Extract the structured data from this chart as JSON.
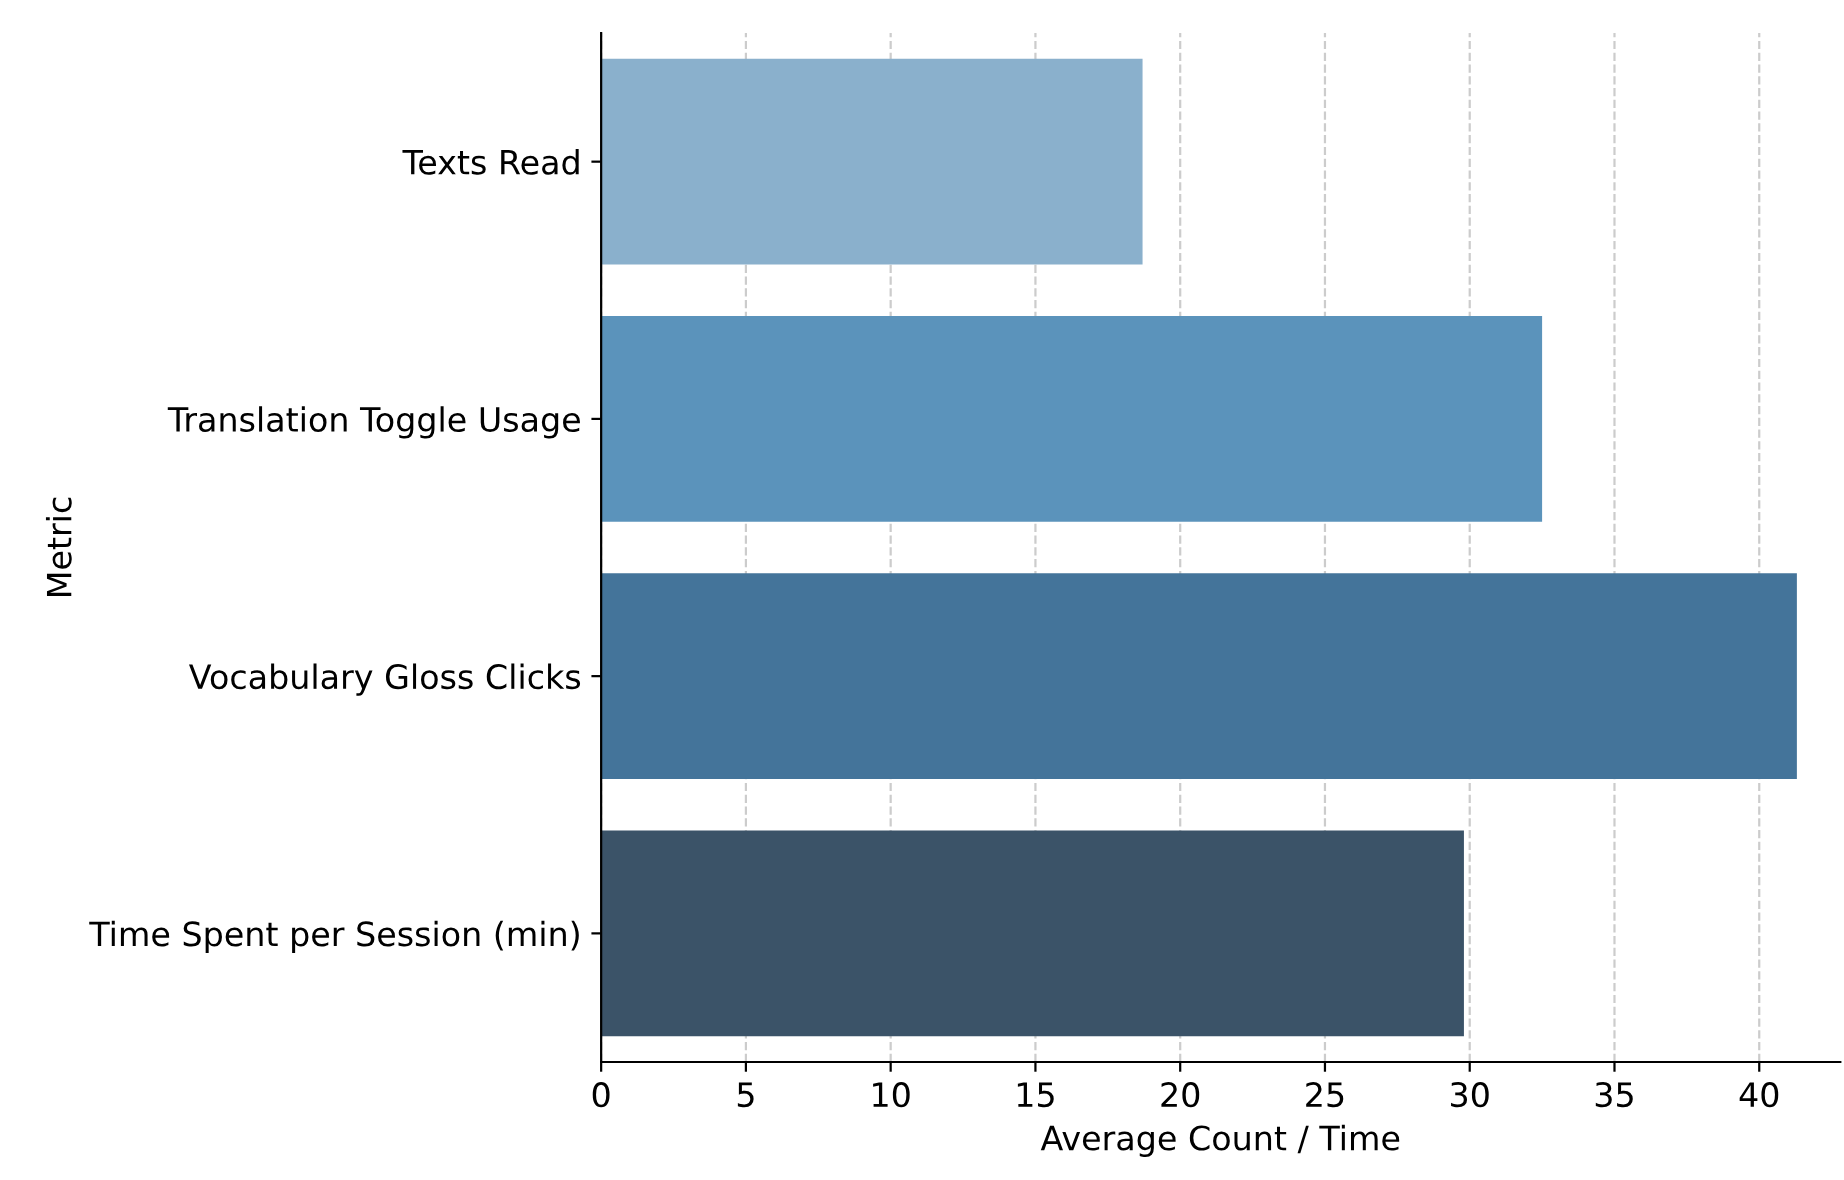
{
  "chart_data": {
    "type": "bar",
    "orientation": "horizontal",
    "xlabel": "Average Count / Time",
    "ylabel": "Metric",
    "categories": [
      "Texts Read",
      "Translation Toggle Usage",
      "Vocabulary Gloss Clicks",
      "Time Spent per Session (min)"
    ],
    "values": [
      18.7,
      32.5,
      41.3,
      29.8
    ],
    "colors": [
      "#8ab0cc",
      "#5b93bb",
      "#44749a",
      "#3b5368"
    ],
    "xlim": [
      0,
      42.8
    ],
    "xticks": [
      0,
      5,
      10,
      15,
      20,
      25,
      30,
      35,
      40
    ],
    "grid": "x"
  }
}
